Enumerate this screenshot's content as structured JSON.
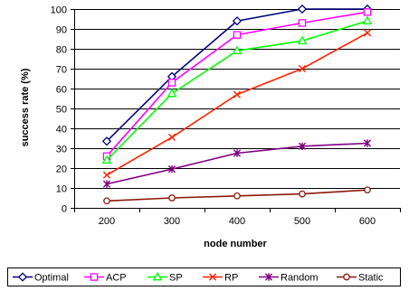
{
  "chart_data": {
    "type": "line",
    "title": "",
    "xlabel": "node number",
    "ylabel": "success rate (%)",
    "x": [
      "200",
      "300",
      "400",
      "500",
      "600"
    ],
    "ylim": [
      0,
      100
    ],
    "ytick_step": 10,
    "grid": "horizontal",
    "legend_placement": "bottom",
    "series": [
      {
        "name": "Optimal",
        "values": [
          33.5,
          66,
          94,
          100,
          100
        ],
        "color": "#000080",
        "marker": "diamond"
      },
      {
        "name": "ACP",
        "values": [
          26,
          63,
          87,
          93,
          98.5
        ],
        "color": "#ff00ff",
        "marker": "square"
      },
      {
        "name": "SP",
        "values": [
          24,
          57.5,
          79,
          84,
          94
        ],
        "color": "#00ff00",
        "marker": "triangle"
      },
      {
        "name": "RP",
        "values": [
          16.5,
          35.5,
          57,
          70,
          88
        ],
        "color": "#ff2200",
        "marker": "x"
      },
      {
        "name": "Random",
        "values": [
          12,
          19.5,
          27.5,
          31,
          32.5
        ],
        "color": "#800080",
        "marker": "star"
      },
      {
        "name": "Static",
        "values": [
          3.5,
          5,
          6,
          7,
          9
        ],
        "color": "#8b1a0a",
        "marker": "circle"
      }
    ]
  }
}
